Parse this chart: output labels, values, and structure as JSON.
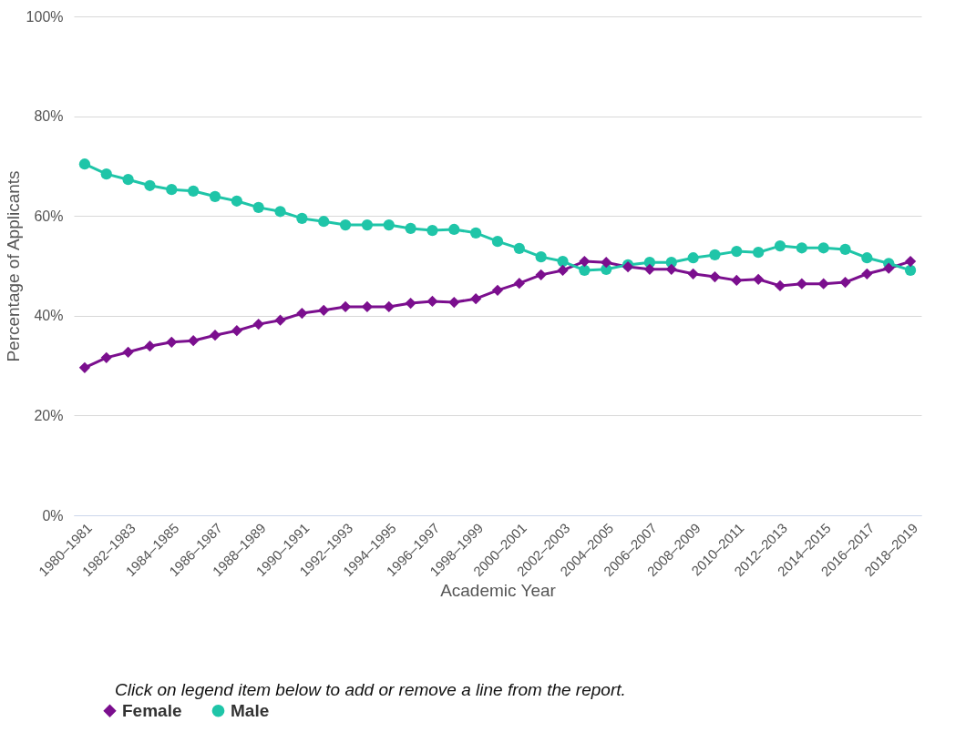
{
  "chart_data": {
    "type": "line",
    "xlabel": "Academic Year",
    "ylabel": "Percentage of Applicants",
    "categories": [
      "1980–1981",
      null,
      "1982–1983",
      null,
      "1984–1985",
      null,
      "1986–1987",
      null,
      "1988–1989",
      null,
      "1990–1991",
      null,
      "1992–1993",
      null,
      "1994–1995",
      null,
      "1996–1997",
      null,
      "1998–1999",
      null,
      "2000–2001",
      null,
      "2002–2003",
      null,
      "2004–2005",
      null,
      "2006–2007",
      null,
      "2008–2009",
      null,
      "2010–2011",
      null,
      "2012–2013",
      null,
      "2014–2015",
      null,
      "2016–2017",
      null,
      "2018–2019"
    ],
    "series": [
      {
        "name": "Female",
        "color": "#7b0f8e",
        "marker": "diamond",
        "values": [
          29.6,
          31.6,
          32.7,
          33.9,
          34.7,
          35.0,
          36.1,
          37.0,
          38.3,
          39.1,
          40.5,
          41.1,
          41.8,
          41.8,
          41.8,
          42.5,
          42.9,
          42.7,
          43.4,
          45.1,
          46.5,
          48.2,
          49.1,
          50.9,
          50.7,
          49.8,
          49.3,
          49.3,
          48.4,
          47.8,
          47.1,
          47.3,
          46.0,
          46.4,
          46.4,
          46.7,
          48.4,
          49.5,
          50.9
        ]
      },
      {
        "name": "Male",
        "color": "#1fc5a8",
        "marker": "circle",
        "values": [
          70.4,
          68.4,
          67.3,
          66.1,
          65.3,
          65.0,
          63.9,
          63.0,
          61.7,
          60.9,
          59.5,
          58.9,
          58.2,
          58.2,
          58.2,
          57.5,
          57.1,
          57.3,
          56.6,
          54.9,
          53.5,
          51.8,
          50.9,
          49.1,
          49.3,
          50.2,
          50.7,
          50.7,
          51.6,
          52.2,
          52.9,
          52.7,
          54.0,
          53.6,
          53.6,
          53.3,
          51.6,
          50.5,
          49.1
        ]
      }
    ],
    "ylim": [
      0,
      100
    ],
    "yticks": [
      {
        "value": 0,
        "label": "0%"
      },
      {
        "value": 20,
        "label": "20%"
      },
      {
        "value": 40,
        "label": "40%"
      },
      {
        "value": 60,
        "label": "60%"
      },
      {
        "value": 80,
        "label": "80%"
      },
      {
        "value": 100,
        "label": "100%"
      }
    ],
    "grid": "y",
    "legend": "bottom left",
    "line_style": "solid",
    "annotations": [
      "Click on legend item below to add or remove a line from the report."
    ]
  }
}
